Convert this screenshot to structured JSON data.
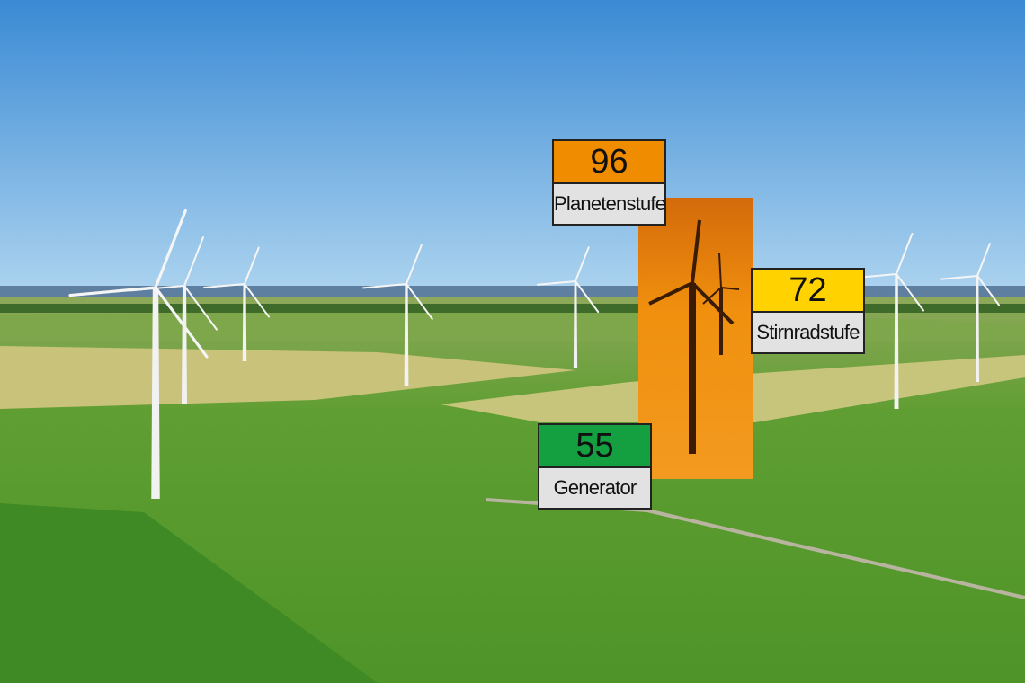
{
  "readings": [
    {
      "id": "planetenstufe",
      "value": "96",
      "label": "Planetenstufe",
      "color": "#f08c00"
    },
    {
      "id": "stirnradstufe",
      "value": "72",
      "label": "Stirnradstufe",
      "color": "#ffd200"
    },
    {
      "id": "generator",
      "value": "55",
      "label": "Generator",
      "color": "#14a040"
    }
  ],
  "colors": {
    "sky_top": "#3f8fd6",
    "sky_horizon": "#a8d0ee",
    "field": "#6aa83a",
    "thermal": "#f0900e"
  }
}
